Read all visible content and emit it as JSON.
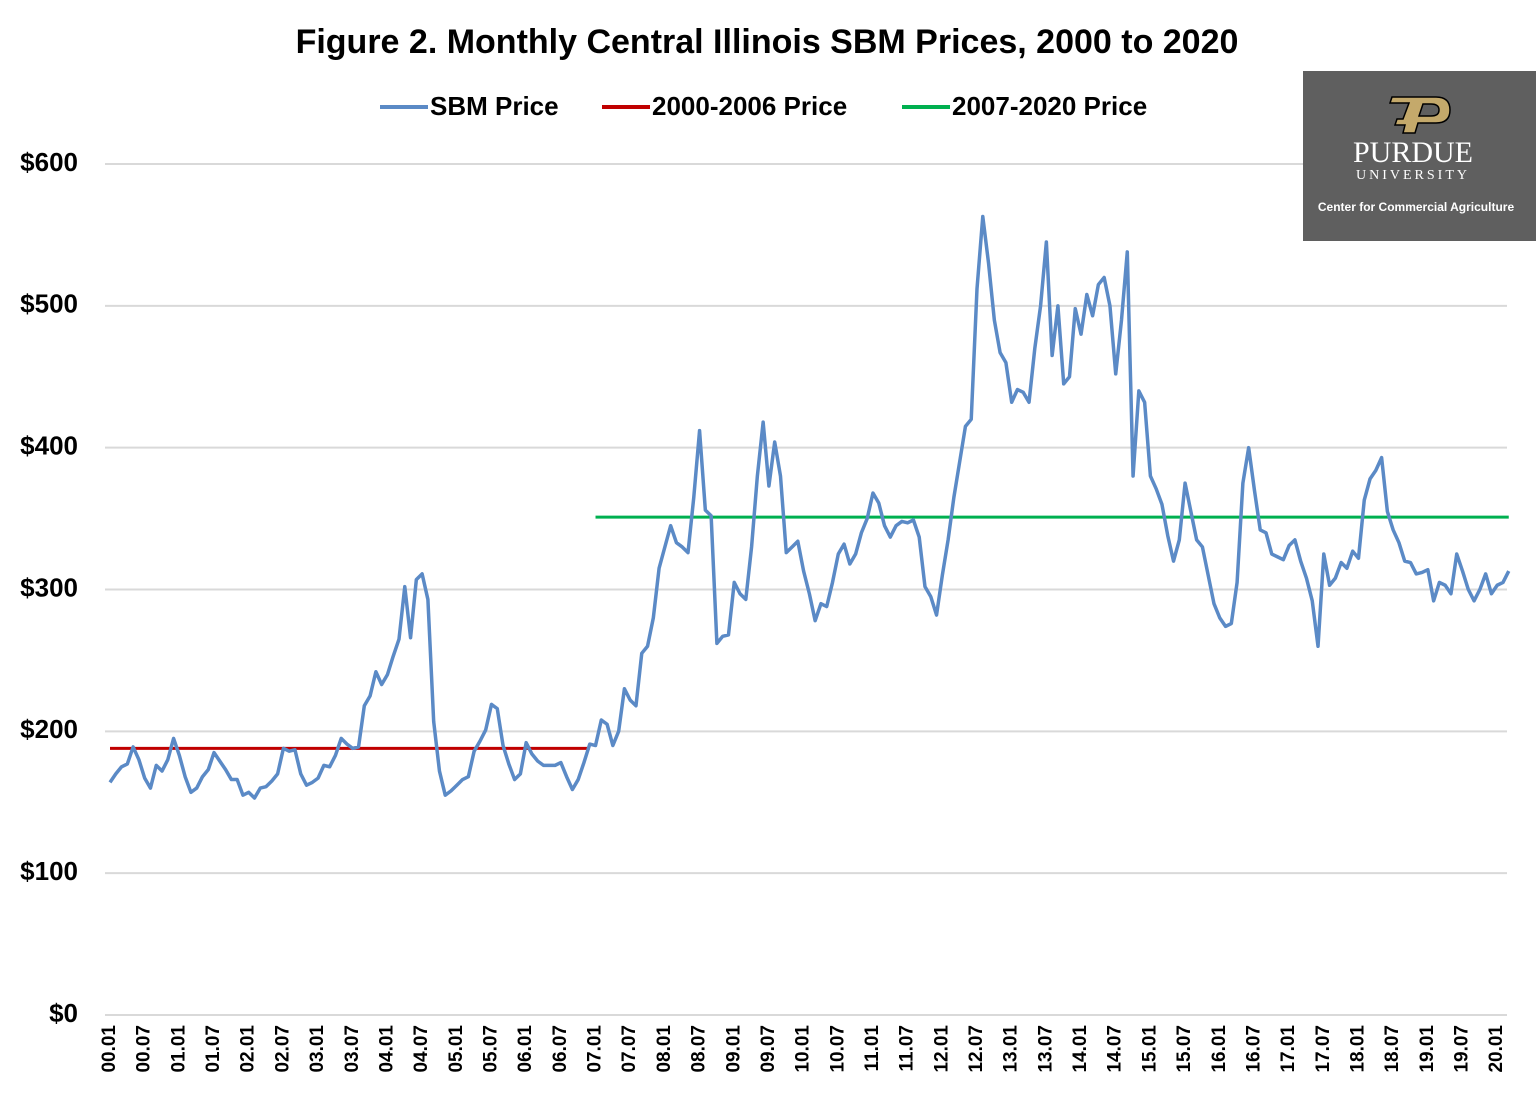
{
  "chart_data": {
    "type": "line",
    "title": "Figure 2.  Monthly Central Illinois SBM Prices, 2000 to 2020",
    "logo": {
      "name": "PURDUE",
      "sub": "UNIVERSITY",
      "tagline": "Center for Commercial Agriculture"
    },
    "categories": [
      "00.01",
      null,
      null,
      null,
      null,
      null,
      "00.07",
      null,
      null,
      null,
      null,
      null,
      "01.01",
      null,
      null,
      null,
      null,
      null,
      "01.07",
      null,
      null,
      null,
      null,
      null,
      "02.01",
      null,
      null,
      null,
      null,
      null,
      "02.07",
      null,
      null,
      null,
      null,
      null,
      "03.01",
      null,
      null,
      null,
      null,
      null,
      "03.07",
      null,
      null,
      null,
      null,
      null,
      "04.01",
      null,
      null,
      null,
      null,
      null,
      "04.07",
      null,
      null,
      null,
      null,
      null,
      "05.01",
      null,
      null,
      null,
      null,
      null,
      "05.07",
      null,
      null,
      null,
      null,
      null,
      "06.01",
      null,
      null,
      null,
      null,
      null,
      "06.07",
      null,
      null,
      null,
      null,
      null,
      "07.01",
      null,
      null,
      null,
      null,
      null,
      "07.07",
      null,
      null,
      null,
      null,
      null,
      "08.01",
      null,
      null,
      null,
      null,
      null,
      "08.07",
      null,
      null,
      null,
      null,
      null,
      "09.01",
      null,
      null,
      null,
      null,
      null,
      "09.07",
      null,
      null,
      null,
      null,
      null,
      "10.01",
      null,
      null,
      null,
      null,
      null,
      "10.07",
      null,
      null,
      null,
      null,
      null,
      "11.01",
      null,
      null,
      null,
      null,
      null,
      "11.07",
      null,
      null,
      null,
      null,
      null,
      "12.01",
      null,
      null,
      null,
      null,
      null,
      "12.07",
      null,
      null,
      null,
      null,
      null,
      "13.01",
      null,
      null,
      null,
      null,
      null,
      "13.07",
      null,
      null,
      null,
      null,
      null,
      "14.01",
      null,
      null,
      null,
      null,
      null,
      "14.07",
      null,
      null,
      null,
      null,
      null,
      "15.01",
      null,
      null,
      null,
      null,
      null,
      "15.07",
      null,
      null,
      null,
      null,
      null,
      "16.01",
      null,
      null,
      null,
      null,
      null,
      "16.07",
      null,
      null,
      null,
      null,
      null,
      "17.01",
      null,
      null,
      null,
      null,
      null,
      "17.07",
      null,
      null,
      null,
      null,
      null,
      "18.01",
      null,
      null,
      null,
      null,
      null,
      "18.07",
      null,
      null,
      null,
      null,
      null,
      "19.01",
      null,
      null,
      null,
      null,
      null,
      "19.07",
      null,
      null,
      null,
      null,
      null,
      "20.01",
      null,
      null
    ],
    "series": [
      {
        "name": "SBM Price",
        "color": "#5b8ac6",
        "values": [
          164,
          170,
          175,
          177,
          189,
          180,
          167,
          160,
          176,
          172,
          180,
          195,
          183,
          168,
          157,
          160,
          168,
          173,
          185,
          179,
          173,
          166,
          166,
          155,
          157,
          153,
          160,
          161,
          165,
          170,
          188,
          186,
          187,
          170,
          162,
          164,
          167,
          176,
          175,
          183,
          195,
          191,
          188,
          189,
          218,
          225,
          242,
          233,
          240,
          253,
          265,
          302,
          266,
          307,
          311,
          293,
          207,
          172,
          155,
          158,
          162,
          166,
          168,
          186,
          193,
          201,
          219,
          216,
          190,
          177,
          166,
          170,
          192,
          184,
          179,
          176,
          176,
          176,
          178,
          168,
          159,
          166,
          178,
          191,
          190,
          208,
          205,
          190,
          200,
          230,
          222,
          218,
          255,
          260,
          280,
          315,
          330,
          345,
          333,
          330,
          326,
          365,
          412,
          356,
          352,
          262,
          267,
          268,
          305,
          297,
          293,
          330,
          380,
          418,
          373,
          404,
          380,
          326,
          330,
          334,
          313,
          297,
          278,
          290,
          288,
          305,
          325,
          332,
          318,
          325,
          340,
          350,
          368,
          361,
          345,
          337,
          345,
          348,
          347,
          349,
          337,
          302,
          295,
          282,
          310,
          335,
          365,
          390,
          415,
          420,
          512,
          563,
          530,
          490,
          467,
          460,
          432,
          441,
          439,
          432,
          470,
          500,
          545,
          465,
          500,
          445,
          450,
          498,
          480,
          508,
          493,
          515,
          520,
          500,
          452,
          490,
          538,
          380,
          440,
          432,
          380,
          371,
          360,
          338,
          320,
          335,
          375,
          355,
          335,
          330,
          310,
          290,
          280,
          274,
          276,
          305,
          375,
          400,
          370,
          342,
          340,
          325,
          323,
          321,
          331,
          335,
          320,
          308,
          292,
          260,
          325,
          303,
          308,
          319,
          315,
          327,
          322,
          363,
          378,
          384,
          393,
          355,
          342,
          333,
          320,
          319,
          311,
          312,
          314,
          292,
          305,
          303,
          297,
          325,
          313,
          300,
          292,
          300,
          311,
          297,
          303,
          305,
          313
        ]
      },
      {
        "name": "2000-2006 Price",
        "color": "#c00000",
        "values": [
          188,
          188,
          188,
          188,
          188,
          188,
          188,
          188,
          188,
          188,
          188,
          188,
          188,
          188,
          188,
          188,
          188,
          188,
          188,
          188,
          188,
          188,
          188,
          188,
          188,
          188,
          188,
          188,
          188,
          188,
          188,
          188,
          188,
          188,
          188,
          188,
          188,
          188,
          188,
          188,
          188,
          188,
          188,
          188,
          188,
          188,
          188,
          188,
          188,
          188,
          188,
          188,
          188,
          188,
          188,
          188,
          188,
          188,
          188,
          188,
          188,
          188,
          188,
          188,
          188,
          188,
          188,
          188,
          188,
          188,
          188,
          188,
          188,
          188,
          188,
          188,
          188,
          188,
          188,
          188,
          188,
          188,
          188,
          188,
          null,
          null,
          null,
          null,
          null,
          null,
          null,
          null,
          null,
          null,
          null,
          null,
          null,
          null,
          null,
          null,
          null,
          null,
          null,
          null,
          null,
          null,
          null,
          null,
          null,
          null,
          null,
          null,
          null,
          null,
          null,
          null,
          null,
          null,
          null,
          null,
          null,
          null,
          null,
          null,
          null,
          null,
          null,
          null,
          null,
          null,
          null,
          null,
          null,
          null,
          null,
          null,
          null,
          null,
          null,
          null,
          null,
          null,
          null,
          null,
          null,
          null,
          null,
          null,
          null,
          null,
          null,
          null,
          null,
          null,
          null,
          null,
          null,
          null,
          null,
          null,
          null,
          null,
          null,
          null,
          null,
          null,
          null,
          null,
          null,
          null,
          null,
          null,
          null,
          null,
          null,
          null,
          null,
          null,
          null,
          null,
          null,
          null,
          null,
          null,
          null,
          null,
          null,
          null,
          null,
          null,
          null,
          null,
          null,
          null,
          null,
          null,
          null,
          null,
          null,
          null,
          null,
          null,
          null,
          null,
          null,
          null,
          null,
          null,
          null,
          null,
          null,
          null,
          null,
          null,
          null,
          null,
          null,
          null,
          null,
          null,
          null,
          null,
          null,
          null,
          null,
          null,
          null,
          null,
          null,
          null,
          null,
          null,
          null,
          null,
          null,
          null,
          null,
          null,
          null,
          null,
          null,
          null,
          null
        ]
      },
      {
        "name": "2007-2020 Price",
        "color": "#00b050",
        "values": [
          null,
          null,
          null,
          null,
          null,
          null,
          null,
          null,
          null,
          null,
          null,
          null,
          null,
          null,
          null,
          null,
          null,
          null,
          null,
          null,
          null,
          null,
          null,
          null,
          null,
          null,
          null,
          null,
          null,
          null,
          null,
          null,
          null,
          null,
          null,
          null,
          null,
          null,
          null,
          null,
          null,
          null,
          null,
          null,
          null,
          null,
          null,
          null,
          null,
          null,
          null,
          null,
          null,
          null,
          null,
          null,
          null,
          null,
          null,
          null,
          null,
          null,
          null,
          null,
          null,
          null,
          null,
          null,
          null,
          null,
          null,
          null,
          null,
          null,
          null,
          null,
          null,
          null,
          null,
          null,
          null,
          null,
          null,
          null,
          351,
          351,
          351,
          351,
          351,
          351,
          351,
          351,
          351,
          351,
          351,
          351,
          351,
          351,
          351,
          351,
          351,
          351,
          351,
          351,
          351,
          351,
          351,
          351,
          351,
          351,
          351,
          351,
          351,
          351,
          351,
          351,
          351,
          351,
          351,
          351,
          351,
          351,
          351,
          351,
          351,
          351,
          351,
          351,
          351,
          351,
          351,
          351,
          351,
          351,
          351,
          351,
          351,
          351,
          351,
          351,
          351,
          351,
          351,
          351,
          351,
          351,
          351,
          351,
          351,
          351,
          351,
          351,
          351,
          351,
          351,
          351,
          351,
          351,
          351,
          351,
          351,
          351,
          351,
          351,
          351,
          351,
          351,
          351,
          351,
          351,
          351,
          351,
          351,
          351,
          351,
          351,
          351,
          351,
          351,
          351,
          351,
          351,
          351,
          351,
          351,
          351,
          351,
          351,
          351,
          351,
          351,
          351,
          351,
          351,
          351,
          351,
          351,
          351,
          351,
          351,
          351,
          351,
          351,
          351,
          351,
          351,
          351,
          351,
          351,
          351,
          351,
          351,
          351,
          351,
          351,
          351,
          351,
          351,
          351,
          351,
          351,
          351,
          351,
          351,
          351,
          351,
          351,
          351,
          351,
          351,
          351,
          351,
          351,
          351,
          351,
          351,
          351,
          351,
          351,
          351,
          351,
          351,
          351
        ]
      }
    ],
    "ylim": [
      0,
      600
    ],
    "yticks": [
      {
        "value": 0,
        "label": "$0"
      },
      {
        "value": 100,
        "label": "$100"
      },
      {
        "value": 200,
        "label": "$200"
      },
      {
        "value": 300,
        "label": "$300"
      },
      {
        "value": 400,
        "label": "$400"
      },
      {
        "value": 500,
        "label": "$500"
      },
      {
        "value": 600,
        "label": "$600"
      }
    ],
    "grid": true
  }
}
